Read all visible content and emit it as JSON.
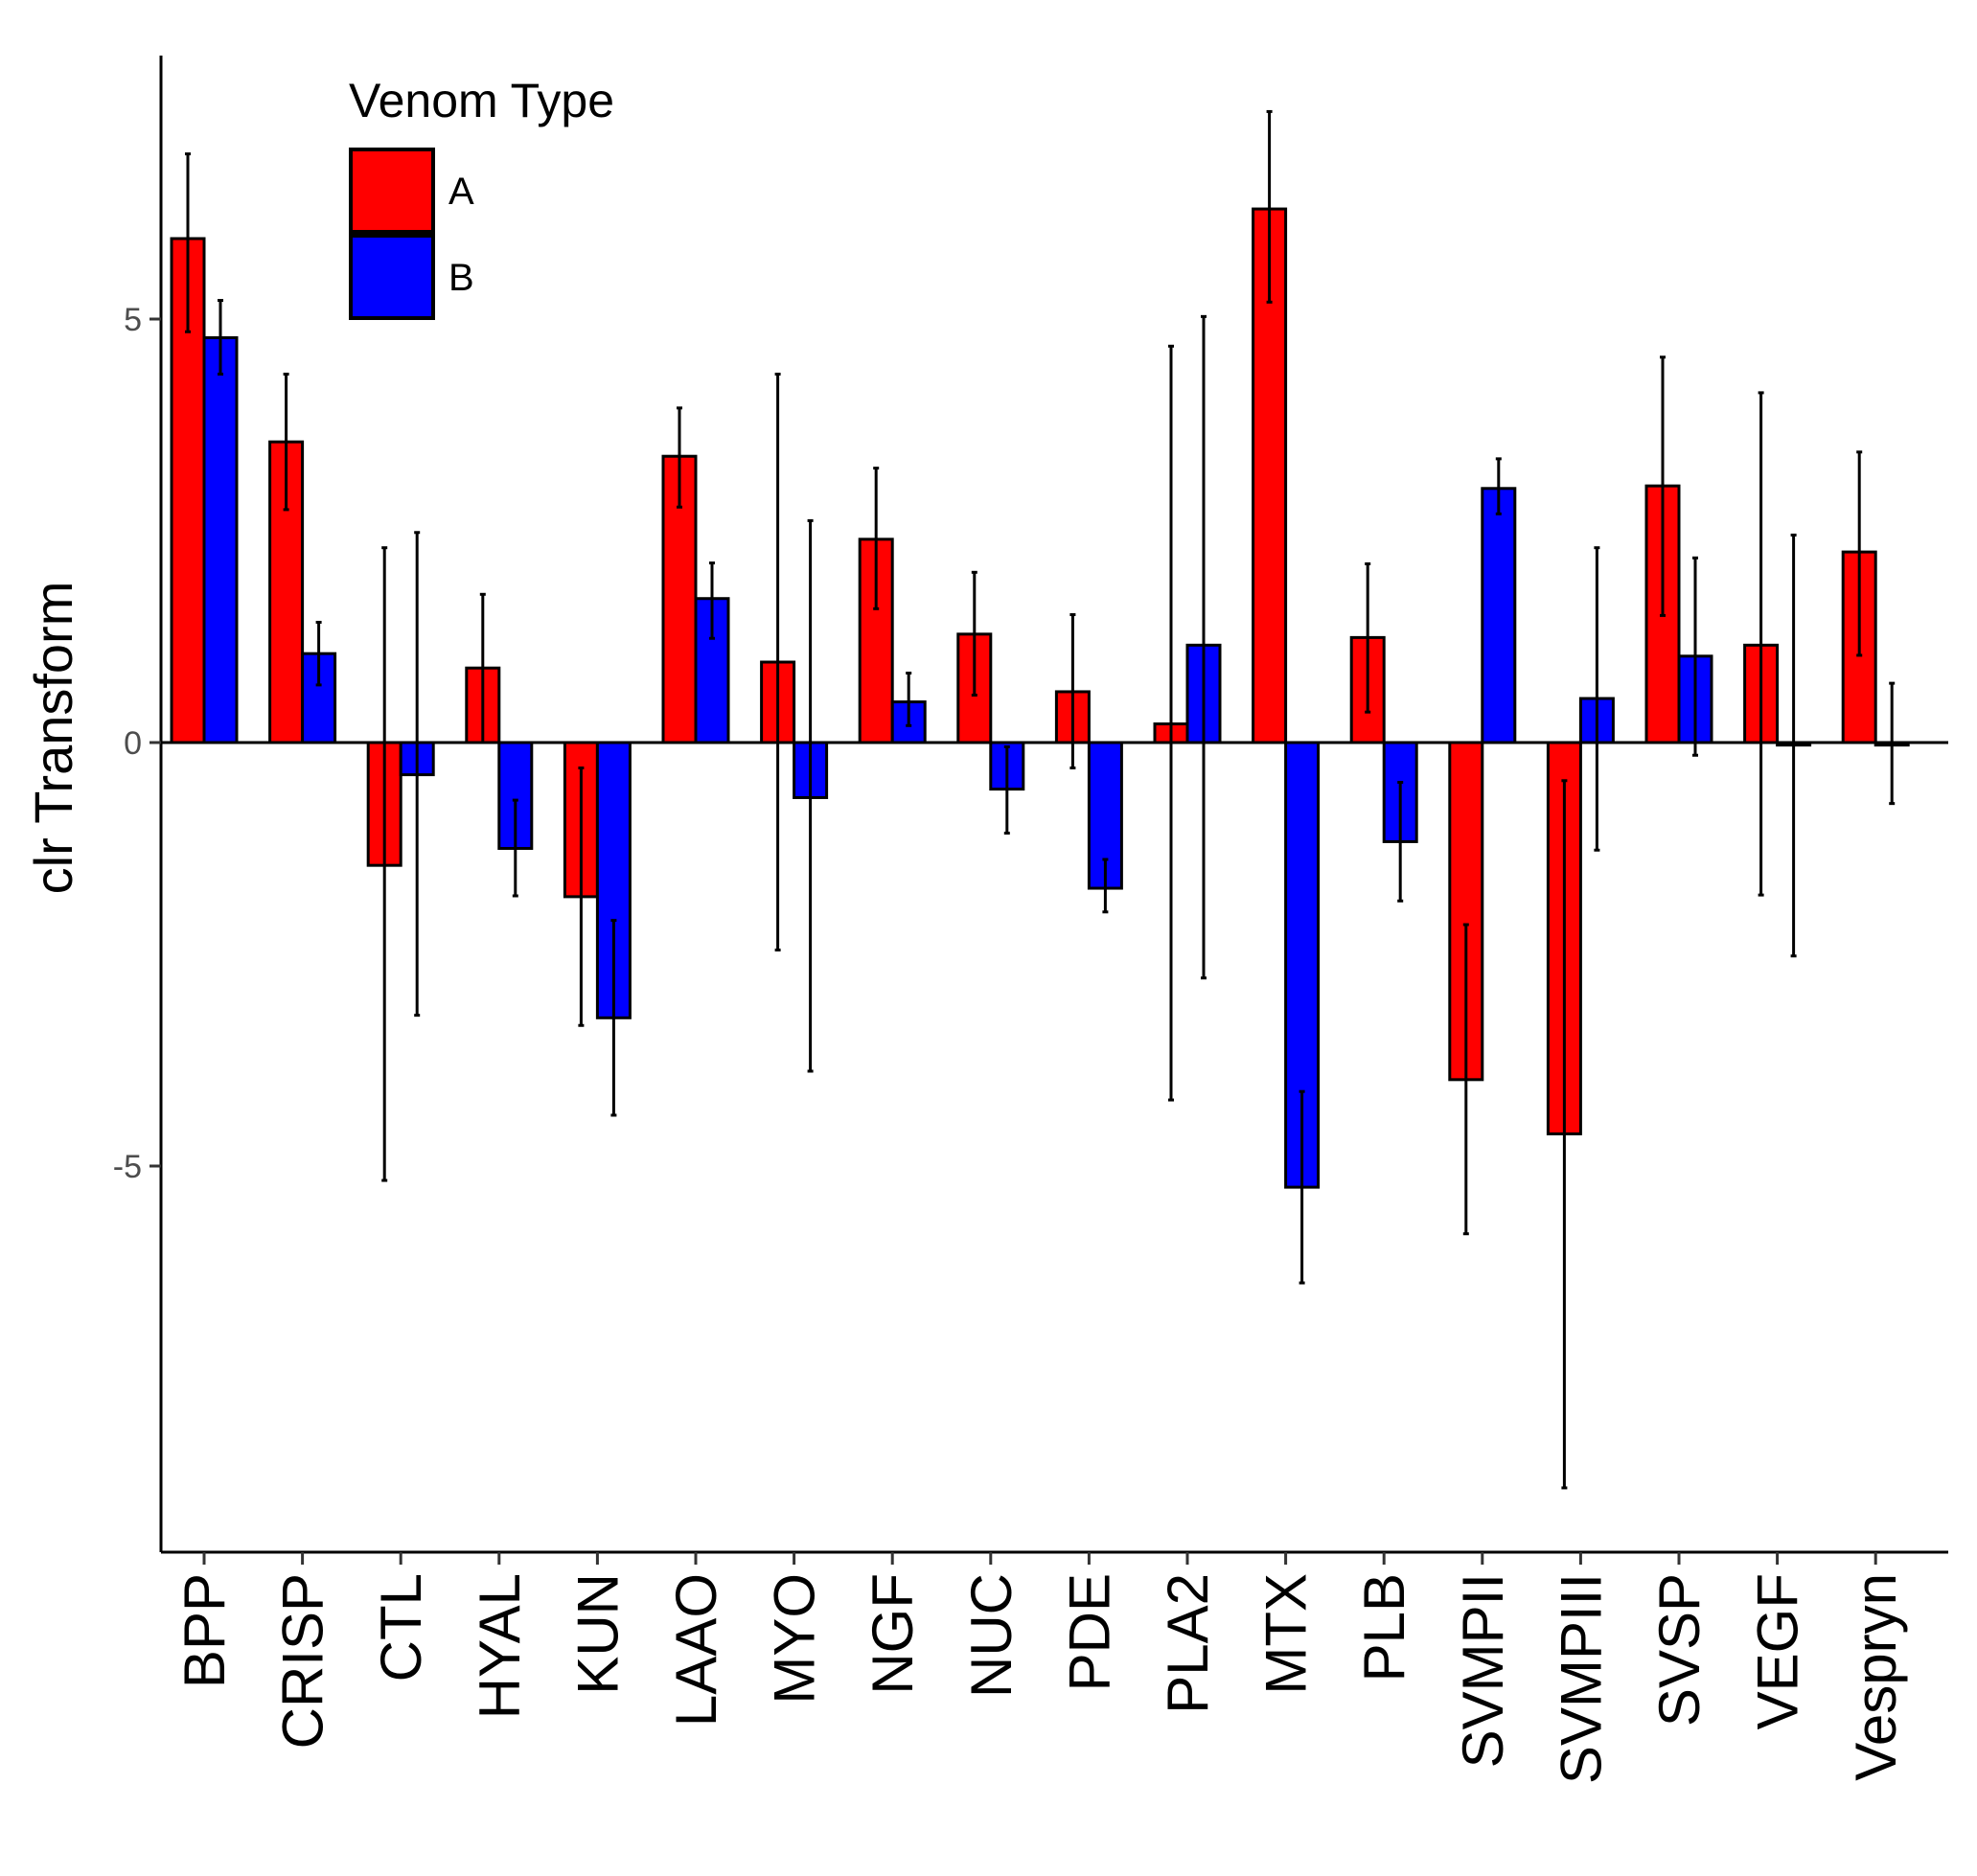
{
  "chart_data": {
    "type": "bar",
    "title": "",
    "xlabel": "",
    "ylabel": "clr Transform",
    "ylim": [
      -9.5,
      8.1
    ],
    "yticks": [
      -5,
      0,
      5
    ],
    "ytick_labels": [
      "-5",
      "0",
      "5"
    ],
    "grid": false,
    "legend": {
      "title": "Venom Type",
      "placement": "top-left"
    },
    "categories": [
      "BPP",
      "CRISP",
      "CTL",
      "HYAL",
      "KUN",
      "LAAO",
      "MYO",
      "NGF",
      "NUC",
      "PDE",
      "PLA2",
      "MTX",
      "PLB",
      "SVMPII",
      "SVMPIII",
      "SVSP",
      "VEGF",
      "Vespryn"
    ],
    "series": [
      {
        "name": "A",
        "color": "#ff0000",
        "values": [
          5.95,
          3.55,
          -1.45,
          0.88,
          -1.82,
          3.38,
          0.95,
          2.4,
          1.28,
          0.6,
          0.22,
          6.3,
          1.24,
          -3.98,
          -4.62,
          3.03,
          1.15,
          2.25
        ],
        "err_low": [
          4.85,
          2.75,
          -5.17,
          0.0,
          -3.34,
          2.78,
          -2.45,
          1.58,
          0.56,
          -0.3,
          -4.22,
          5.2,
          0.36,
          -5.8,
          -8.8,
          1.5,
          -1.8,
          1.03
        ],
        "err_high": [
          6.95,
          4.35,
          2.3,
          1.75,
          -0.3,
          3.95,
          4.35,
          3.24,
          2.01,
          1.51,
          4.68,
          7.45,
          2.11,
          -2.15,
          -0.45,
          4.55,
          4.13,
          3.43
        ]
      },
      {
        "name": "B",
        "color": "#0000ff",
        "values": [
          4.78,
          1.05,
          -0.38,
          -1.25,
          -3.25,
          1.7,
          -0.65,
          0.48,
          -0.55,
          -1.72,
          1.15,
          -5.25,
          -1.17,
          3.0,
          0.52,
          1.02,
          -0.03,
          -0.03
        ],
        "err_low": [
          4.35,
          0.68,
          -3.22,
          -1.81,
          -4.4,
          1.23,
          -3.88,
          0.2,
          -1.07,
          -2.0,
          -2.78,
          -6.38,
          -1.87,
          2.7,
          -1.27,
          -0.15,
          -2.52,
          -0.72
        ],
        "err_high": [
          5.22,
          1.42,
          2.48,
          -0.68,
          -2.1,
          2.12,
          2.62,
          0.82,
          -0.05,
          -1.38,
          5.03,
          -4.12,
          -0.47,
          3.35,
          2.3,
          2.18,
          2.45,
          0.7
        ]
      }
    ]
  }
}
